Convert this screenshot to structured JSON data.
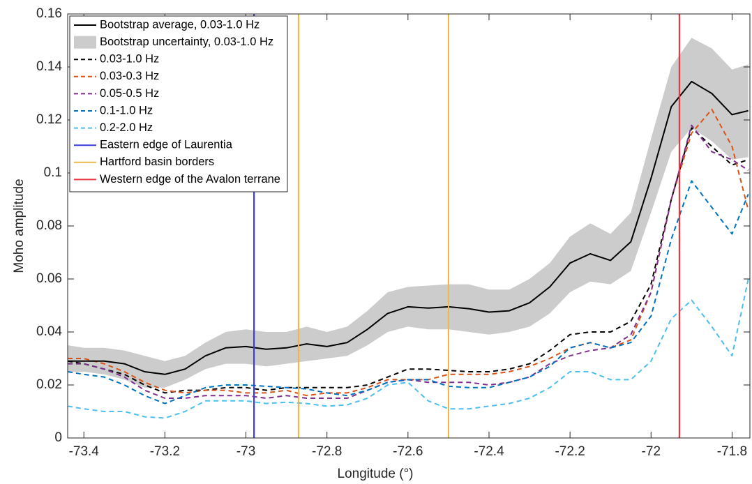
{
  "chart_data": {
    "type": "line",
    "xlabel": "Longitude (°)",
    "ylabel": "Moho amplitude",
    "xlim": [
      -73.44,
      -71.756
    ],
    "xticks": [
      -73.4,
      -73.2,
      -73,
      -72.8,
      -72.6,
      -72.4,
      -72.2,
      -72,
      -71.8
    ],
    "ylim": [
      0,
      0.16
    ],
    "yticks": [
      0,
      0.02,
      0.04,
      0.06,
      0.08,
      0.1,
      0.12,
      0.14,
      0.16
    ],
    "legend": "upper-left",
    "x": [
      -73.44,
      -73.4,
      -73.35,
      -73.3,
      -73.25,
      -73.2,
      -73.15,
      -73.1,
      -73.05,
      -73,
      -72.95,
      -72.9,
      -72.85,
      -72.8,
      -72.75,
      -72.7,
      -72.65,
      -72.6,
      -72.55,
      -72.5,
      -72.45,
      -72.4,
      -72.35,
      -72.3,
      -72.25,
      -72.2,
      -72.15,
      -72.1,
      -72.05,
      -72,
      -71.95,
      -71.9,
      -71.85,
      -71.8,
      -71.76
    ],
    "band": {
      "name": "Bootstrap uncertainty, 0.03-1.0 Hz",
      "color": "#cccccc",
      "lower": [
        0.025,
        0.025,
        0.024,
        0.022,
        0.019,
        0.019,
        0.022,
        0.026,
        0.028,
        0.028,
        0.027,
        0.028,
        0.029,
        0.03,
        0.031,
        0.035,
        0.04,
        0.042,
        0.041,
        0.041,
        0.04,
        0.039,
        0.04,
        0.042,
        0.047,
        0.055,
        0.059,
        0.058,
        0.063,
        0.085,
        0.108,
        0.117,
        0.112,
        0.105,
        0.106
      ],
      "upper": [
        0.035,
        0.034,
        0.034,
        0.033,
        0.031,
        0.029,
        0.031,
        0.036,
        0.04,
        0.041,
        0.04,
        0.04,
        0.042,
        0.04,
        0.042,
        0.048,
        0.055,
        0.057,
        0.0575,
        0.058,
        0.058,
        0.056,
        0.056,
        0.06,
        0.066,
        0.076,
        0.081,
        0.077,
        0.085,
        0.113,
        0.14,
        0.151,
        0.147,
        0.139,
        0.141
      ]
    },
    "series": [
      {
        "name": "Bootstrap average, 0.03-1.0 Hz",
        "color": "#000000",
        "dash": "solid",
        "values": [
          0.029,
          0.029,
          0.029,
          0.028,
          0.025,
          0.024,
          0.026,
          0.031,
          0.034,
          0.0345,
          0.0335,
          0.034,
          0.0355,
          0.0345,
          0.036,
          0.041,
          0.047,
          0.0495,
          0.049,
          0.0495,
          0.0488,
          0.0475,
          0.048,
          0.051,
          0.057,
          0.066,
          0.0695,
          0.067,
          0.074,
          0.098,
          0.125,
          0.1345,
          0.13,
          0.122,
          0.1235
        ]
      },
      {
        "name": "0.03-1.0 Hz",
        "color": "#000000",
        "dash": "dashed",
        "values": [
          0.029,
          0.028,
          0.026,
          0.024,
          0.02,
          0.017,
          0.018,
          0.018,
          0.019,
          0.019,
          0.018,
          0.019,
          0.019,
          0.019,
          0.019,
          0.02,
          0.023,
          0.026,
          0.026,
          0.0255,
          0.025,
          0.025,
          0.026,
          0.028,
          0.033,
          0.039,
          0.04,
          0.04,
          0.044,
          0.058,
          0.09,
          0.117,
          0.11,
          0.103,
          0.105
        ]
      },
      {
        "name": "0.03-0.3 Hz",
        "color": "#d95319",
        "dash": "dashed",
        "values": [
          0.03,
          0.03,
          0.028,
          0.025,
          0.021,
          0.018,
          0.017,
          0.018,
          0.018,
          0.017,
          0.017,
          0.018,
          0.016,
          0.017,
          0.017,
          0.019,
          0.022,
          0.022,
          0.022,
          0.024,
          0.024,
          0.024,
          0.025,
          0.027,
          0.03,
          0.034,
          0.036,
          0.034,
          0.037,
          0.055,
          0.09,
          0.115,
          0.124,
          0.11,
          0.086
        ]
      },
      {
        "name": "0.05-0.5 Hz",
        "color": "#7e2f8e",
        "dash": "dashed",
        "values": [
          0.028,
          0.028,
          0.026,
          0.023,
          0.018,
          0.015,
          0.015,
          0.016,
          0.016,
          0.016,
          0.015,
          0.016,
          0.015,
          0.015,
          0.015,
          0.018,
          0.021,
          0.022,
          0.021,
          0.021,
          0.021,
          0.02,
          0.021,
          0.023,
          0.028,
          0.031,
          0.033,
          0.034,
          0.039,
          0.055,
          0.09,
          0.118,
          0.108,
          0.105,
          0.101
        ]
      },
      {
        "name": "0.1-1.0 Hz",
        "color": "#0072bd",
        "dash": "dashed",
        "values": [
          0.025,
          0.024,
          0.023,
          0.02,
          0.016,
          0.013,
          0.016,
          0.019,
          0.02,
          0.02,
          0.0195,
          0.019,
          0.0185,
          0.017,
          0.016,
          0.018,
          0.021,
          0.022,
          0.022,
          0.0195,
          0.019,
          0.019,
          0.021,
          0.023,
          0.027,
          0.034,
          0.036,
          0.034,
          0.036,
          0.046,
          0.075,
          0.097,
          0.087,
          0.077,
          0.092
        ]
      },
      {
        "name": "0.2-2.0 Hz",
        "color": "#4dbeee",
        "dash": "dashed",
        "values": [
          0.012,
          0.011,
          0.01,
          0.01,
          0.008,
          0.0075,
          0.01,
          0.014,
          0.014,
          0.014,
          0.013,
          0.0135,
          0.013,
          0.012,
          0.0125,
          0.015,
          0.02,
          0.021,
          0.014,
          0.011,
          0.011,
          0.012,
          0.013,
          0.015,
          0.019,
          0.025,
          0.025,
          0.022,
          0.022,
          0.029,
          0.045,
          0.052,
          0.042,
          0.031,
          0.06
        ]
      }
    ],
    "vlines": [
      {
        "name": "Eastern edge of Laurentia",
        "color": "#3b3bdb",
        "x": [
          -72.98
        ]
      },
      {
        "name": "Hartford basin borders",
        "color": "#edb74a",
        "x": [
          -72.87,
          -72.5
        ]
      },
      {
        "name": "Western edge of the Avalon terrane",
        "color": "#e8383d",
        "x": [
          -71.93
        ]
      }
    ]
  }
}
